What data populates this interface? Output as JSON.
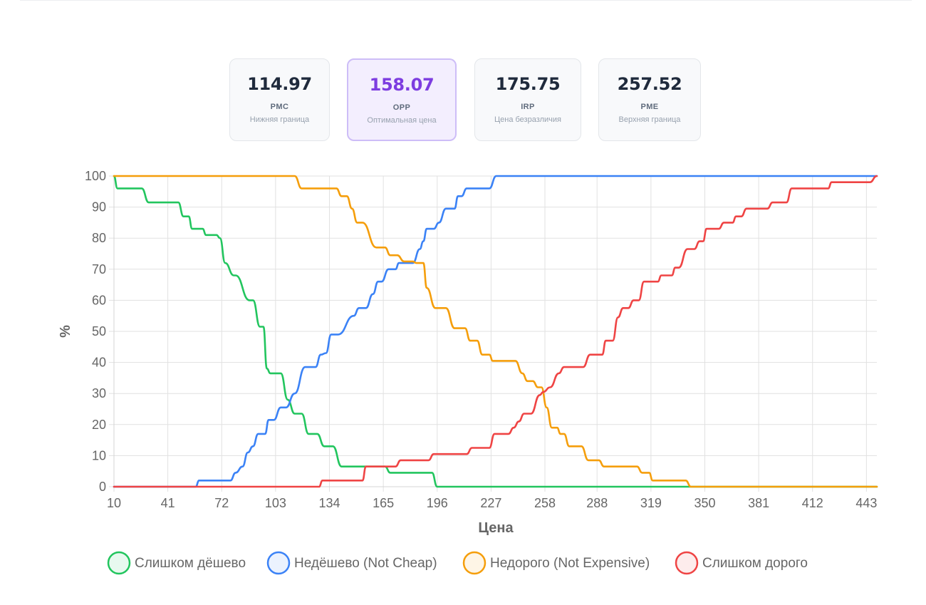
{
  "metrics": [
    {
      "value": "114.97",
      "code": "PMC",
      "desc": "Нижняя граница",
      "highlight": false
    },
    {
      "value": "158.07",
      "code": "OPP",
      "desc": "Оптимальная цена",
      "highlight": true
    },
    {
      "value": "175.75",
      "code": "IRP",
      "desc": "Цена безразличия",
      "highlight": false
    },
    {
      "value": "257.52",
      "code": "PME",
      "desc": "Верхняя граница",
      "highlight": false
    }
  ],
  "chart_data": {
    "type": "line",
    "xlabel": "Цена",
    "ylabel": "%",
    "xlim": [
      10,
      449
    ],
    "ylim": [
      0,
      100
    ],
    "grid": true,
    "legend": "bottom",
    "x_ticks": [
      "10",
      "41",
      "72",
      "103",
      "134",
      "165",
      "196",
      "227",
      "258",
      "288",
      "319",
      "350",
      "381",
      "412",
      "443"
    ],
    "y_ticks": [
      "0",
      "10",
      "20",
      "30",
      "40",
      "50",
      "60",
      "70",
      "80",
      "90",
      "100"
    ],
    "series": [
      {
        "name": "Слишком дёшево",
        "color": "#22c55e",
        "points": [
          [
            10,
            100
          ],
          [
            12,
            96
          ],
          [
            26,
            96
          ],
          [
            30,
            91.5
          ],
          [
            47,
            91.5
          ],
          [
            50,
            87
          ],
          [
            53,
            87
          ],
          [
            55,
            83
          ],
          [
            61,
            83
          ],
          [
            63,
            81
          ],
          [
            69,
            81
          ],
          [
            71,
            80
          ],
          [
            74,
            72
          ],
          [
            79,
            68
          ],
          [
            80,
            68
          ],
          [
            88,
            60
          ],
          [
            90,
            60
          ],
          [
            94,
            51.5
          ],
          [
            96,
            51.5
          ],
          [
            98,
            38
          ],
          [
            100,
            36.5
          ],
          [
            106,
            36.5
          ],
          [
            110,
            28
          ],
          [
            114,
            23.5
          ],
          [
            118,
            23.5
          ],
          [
            122,
            17
          ],
          [
            127,
            17
          ],
          [
            131,
            13
          ],
          [
            136,
            13
          ],
          [
            141,
            6.5
          ],
          [
            155,
            6.5
          ],
          [
            166,
            6.5
          ],
          [
            169,
            4.5
          ],
          [
            193,
            4.5
          ],
          [
            196,
            0
          ],
          [
            449,
            0
          ]
        ]
      },
      {
        "name": "Недёшево (Not Cheap)",
        "color": "#3b82f6",
        "points": [
          [
            10,
            0
          ],
          [
            57,
            0
          ],
          [
            59,
            2
          ],
          [
            77,
            2
          ],
          [
            80,
            4.5
          ],
          [
            84,
            6.5
          ],
          [
            87,
            11
          ],
          [
            90,
            13
          ],
          [
            93,
            17
          ],
          [
            97,
            17
          ],
          [
            99,
            21.5
          ],
          [
            102,
            21.5
          ],
          [
            106,
            25.5
          ],
          [
            109,
            25.5
          ],
          [
            114,
            30
          ],
          [
            120,
            38.5
          ],
          [
            126,
            38.5
          ],
          [
            129,
            42.5
          ],
          [
            132,
            43
          ],
          [
            135,
            49
          ],
          [
            139,
            49
          ],
          [
            148,
            55
          ],
          [
            151,
            57.5
          ],
          [
            155,
            57.5
          ],
          [
            159,
            62
          ],
          [
            162,
            66
          ],
          [
            164,
            66
          ],
          [
            168,
            70
          ],
          [
            172,
            70
          ],
          [
            174,
            72
          ],
          [
            182,
            72
          ],
          [
            186,
            76.5
          ],
          [
            188,
            79
          ],
          [
            190,
            83
          ],
          [
            194,
            83
          ],
          [
            197,
            85
          ],
          [
            201,
            89.5
          ],
          [
            206,
            89.5
          ],
          [
            208,
            93.5
          ],
          [
            210,
            93.5
          ],
          [
            213,
            96
          ],
          [
            226,
            96
          ],
          [
            230,
            100
          ],
          [
            449,
            100
          ]
        ]
      },
      {
        "name": "Недорого (Not Expensive)",
        "color": "#f59e0b",
        "points": [
          [
            10,
            100
          ],
          [
            114,
            100
          ],
          [
            118,
            96
          ],
          [
            138,
            96
          ],
          [
            141,
            93.5
          ],
          [
            144,
            93.5
          ],
          [
            147,
            89.5
          ],
          [
            150,
            85
          ],
          [
            153,
            85
          ],
          [
            161,
            77
          ],
          [
            166,
            77
          ],
          [
            169,
            74.5
          ],
          [
            173,
            74.5
          ],
          [
            177,
            72.5
          ],
          [
            182,
            72.5
          ],
          [
            184,
            72
          ],
          [
            188,
            72
          ],
          [
            190,
            64
          ],
          [
            195,
            57.5
          ],
          [
            201,
            57.5
          ],
          [
            206,
            51
          ],
          [
            212,
            51
          ],
          [
            215,
            47
          ],
          [
            219,
            47
          ],
          [
            222,
            42.5
          ],
          [
            226,
            42.5
          ],
          [
            228,
            40.5
          ],
          [
            241,
            40.5
          ],
          [
            245,
            36.5
          ],
          [
            248,
            34
          ],
          [
            251,
            34
          ],
          [
            254,
            32
          ],
          [
            256,
            32
          ],
          [
            259,
            25.5
          ],
          [
            262,
            19
          ],
          [
            265,
            19
          ],
          [
            267,
            17
          ],
          [
            269,
            17
          ],
          [
            272,
            13
          ],
          [
            279,
            13
          ],
          [
            283,
            8.5
          ],
          [
            289,
            8.5
          ],
          [
            292,
            6.5
          ],
          [
            311,
            6.5
          ],
          [
            314,
            4.5
          ],
          [
            318,
            4.5
          ],
          [
            320,
            2
          ],
          [
            339,
            2
          ],
          [
            342,
            0
          ],
          [
            449,
            0
          ]
        ]
      },
      {
        "name": "Слишком дорого",
        "color": "#ef4444",
        "points": [
          [
            10,
            0
          ],
          [
            128,
            0
          ],
          [
            130,
            2
          ],
          [
            150,
            2
          ],
          [
            153,
            2
          ],
          [
            155,
            6.5
          ],
          [
            172,
            6.5
          ],
          [
            175,
            8.5
          ],
          [
            191,
            8.5
          ],
          [
            194,
            10.5
          ],
          [
            213,
            10.5
          ],
          [
            216,
            12.5
          ],
          [
            226,
            12.5
          ],
          [
            229,
            17
          ],
          [
            237,
            17
          ],
          [
            240,
            19
          ],
          [
            243,
            21
          ],
          [
            246,
            23.5
          ],
          [
            250,
            23.5
          ],
          [
            255,
            29.5
          ],
          [
            257,
            30.5
          ],
          [
            261,
            32
          ],
          [
            266,
            36.5
          ],
          [
            269,
            38.5
          ],
          [
            280,
            38.5
          ],
          [
            284,
            42.5
          ],
          [
            291,
            42.5
          ],
          [
            293,
            47
          ],
          [
            297,
            47
          ],
          [
            300,
            54.5
          ],
          [
            303,
            57.5
          ],
          [
            306,
            57.5
          ],
          [
            309,
            60
          ],
          [
            312,
            60
          ],
          [
            315,
            66
          ],
          [
            323,
            66
          ],
          [
            325,
            68
          ],
          [
            331,
            68
          ],
          [
            333,
            70.5
          ],
          [
            335,
            70.5
          ],
          [
            340,
            76.5
          ],
          [
            344,
            76.5
          ],
          [
            347,
            79
          ],
          [
            349,
            79
          ],
          [
            351,
            83
          ],
          [
            358,
            83
          ],
          [
            361,
            85
          ],
          [
            366,
            85
          ],
          [
            368,
            87
          ],
          [
            371,
            87
          ],
          [
            374,
            89.5
          ],
          [
            386,
            89.5
          ],
          [
            389,
            91.5
          ],
          [
            397,
            91.5
          ],
          [
            400,
            96
          ],
          [
            421,
            96
          ],
          [
            423,
            98
          ],
          [
            445,
            98
          ],
          [
            449,
            100
          ]
        ]
      }
    ]
  }
}
